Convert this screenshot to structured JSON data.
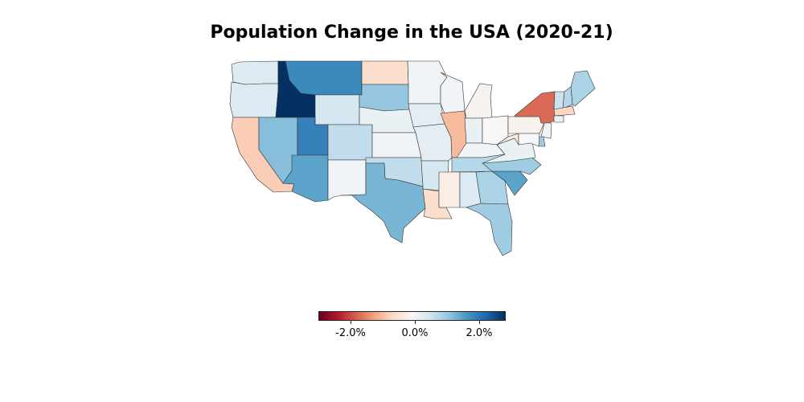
{
  "title": "Population Change in the USA (2020-21)",
  "colorbar": {
    "ticks": [
      "-2.0%",
      "0.0%",
      "2.0%"
    ],
    "colors": [
      "#67001f",
      "#b2182b",
      "#d6604d",
      "#f4a582",
      "#fddbc7",
      "#f7f7f7",
      "#d1e5f0",
      "#92c5de",
      "#4393c3",
      "#2166ac",
      "#053061"
    ]
  },
  "chart_data": {
    "type": "choropleth",
    "scale": "diverging",
    "range": [
      -2.8,
      2.8
    ],
    "values": [
      {
        "state": "WA",
        "value": 0.4
      },
      {
        "state": "OR",
        "value": 0.4
      },
      {
        "state": "CA",
        "value": -0.7
      },
      {
        "state": "NV",
        "value": 1.2
      },
      {
        "state": "ID",
        "value": 2.8
      },
      {
        "state": "MT",
        "value": 1.8
      },
      {
        "state": "WY",
        "value": 0.5
      },
      {
        "state": "UT",
        "value": 1.9
      },
      {
        "state": "AZ",
        "value": 1.5
      },
      {
        "state": "CO",
        "value": 0.7
      },
      {
        "state": "NM",
        "value": 0.1
      },
      {
        "state": "ND",
        "value": -0.5
      },
      {
        "state": "SD",
        "value": 1.1
      },
      {
        "state": "NE",
        "value": 0.2
      },
      {
        "state": "KS",
        "value": 0.1
      },
      {
        "state": "OK",
        "value": 0.7
      },
      {
        "state": "TX",
        "value": 1.3
      },
      {
        "state": "MN",
        "value": 0.1
      },
      {
        "state": "IA",
        "value": 0.3
      },
      {
        "state": "MO",
        "value": 0.3
      },
      {
        "state": "AR",
        "value": 0.5
      },
      {
        "state": "LA",
        "value": -0.5
      },
      {
        "state": "WI",
        "value": 0.1
      },
      {
        "state": "IL",
        "value": -0.9
      },
      {
        "state": "MI",
        "value": -0.1
      },
      {
        "state": "IN",
        "value": 0.2
      },
      {
        "state": "OH",
        "value": 0.0
      },
      {
        "state": "KY",
        "value": 0.1
      },
      {
        "state": "TN",
        "value": 0.8
      },
      {
        "state": "MS",
        "value": -0.2
      },
      {
        "state": "AL",
        "value": 0.4
      },
      {
        "state": "GA",
        "value": 0.9
      },
      {
        "state": "FL",
        "value": 1.0
      },
      {
        "state": "SC",
        "value": 1.5
      },
      {
        "state": "NC",
        "value": 1.0
      },
      {
        "state": "VA",
        "value": 0.2
      },
      {
        "state": "WV",
        "value": -0.3
      },
      {
        "state": "PA",
        "value": -0.1
      },
      {
        "state": "NY",
        "value": -1.6
      },
      {
        "state": "ME",
        "value": 0.9
      },
      {
        "state": "VT",
        "value": 0.6
      },
      {
        "state": "NH",
        "value": 0.8
      },
      {
        "state": "MA",
        "value": -0.6
      },
      {
        "state": "CT",
        "value": 0.2
      },
      {
        "state": "NJ",
        "value": 0.1
      },
      {
        "state": "DE",
        "value": 1.0
      },
      {
        "state": "MD",
        "value": 0.0
      }
    ]
  }
}
